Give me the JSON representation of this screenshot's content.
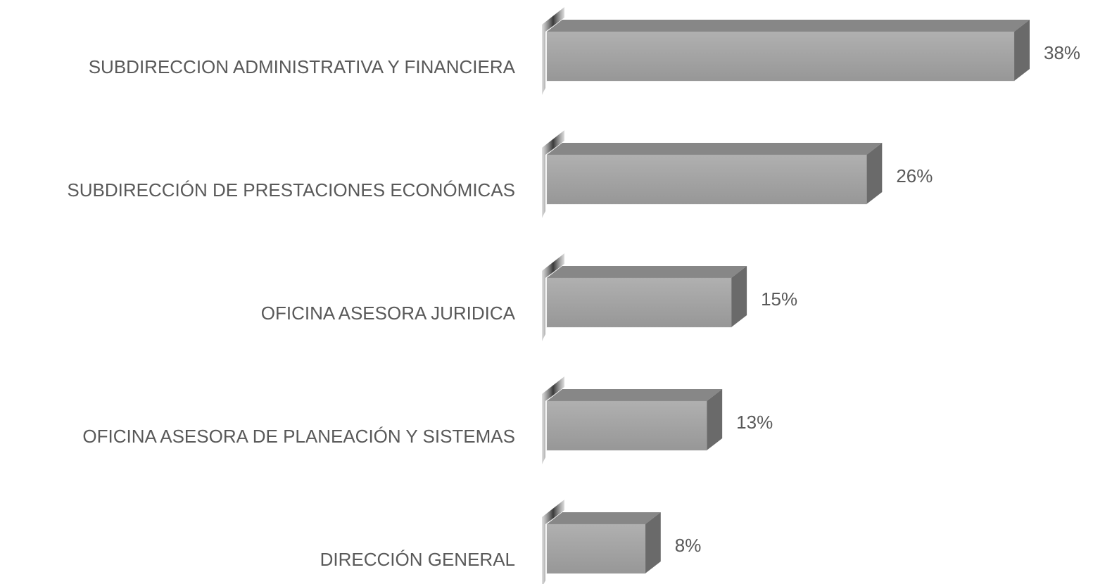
{
  "chart_data": {
    "type": "bar3d",
    "categories": [
      "SUBDIRECCION ADMINISTRATIVA Y FINANCIERA",
      "SUBDIRECCIÓN DE PRESTACIONES ECONÓMICAS",
      "OFICINA ASESORA JURIDICA",
      "OFICINA ASESORA DE PLANEACIÓN Y SISTEMAS",
      "DIRECCIÓN GENERAL"
    ],
    "values": [
      38,
      26,
      15,
      13,
      8
    ],
    "value_labels": [
      "38%",
      "26%",
      "15%",
      "13%",
      "8%"
    ],
    "color": "#a3a3a3"
  }
}
